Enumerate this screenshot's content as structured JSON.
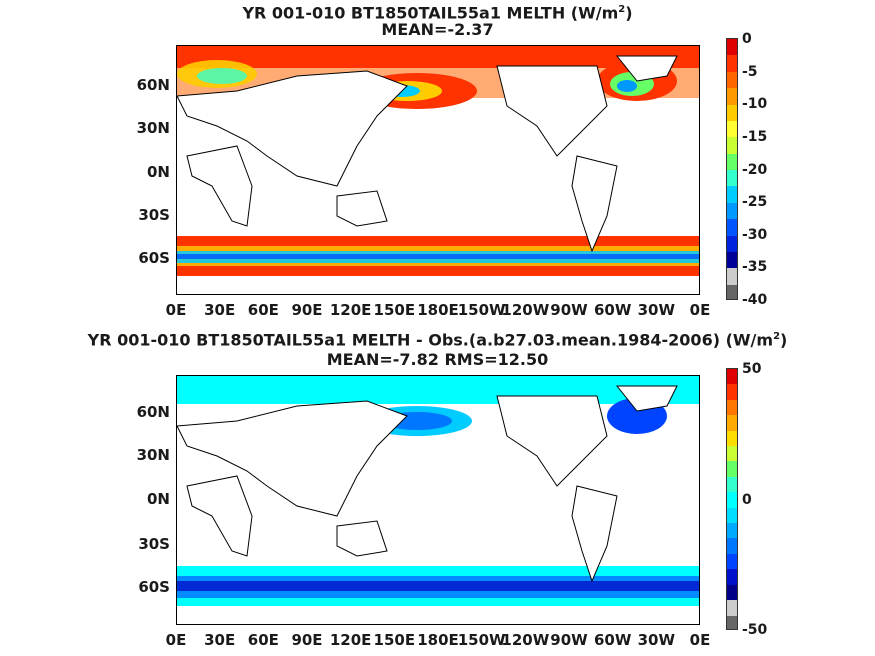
{
  "panel1": {
    "title_line1": "YR 001-010 BT1850TAIL55a1  MELTH (W/m",
    "title_sup": "2",
    "title_close": ")",
    "title_line2": "MEAN=-2.37",
    "colorbar_ticks": [
      "0",
      "-5",
      "-10",
      "-15",
      "-20",
      "-25",
      "-30",
      "-35",
      "-40"
    ]
  },
  "panel2": {
    "title_line1": "YR 001-010 BT1850TAIL55a1 MELTH - Obs.(a.b27.03.mean.1984-2006) (W/m",
    "title_sup": "2",
    "title_close": ")",
    "title_line2": "MEAN=-7.82 RMS=12.50",
    "colorbar_ticks": [
      "50",
      "0",
      "-50"
    ]
  },
  "axes": {
    "lat_labels": [
      "60N",
      "30N",
      "0N",
      "30S",
      "60S"
    ],
    "lon_labels": [
      "0E",
      "30E",
      "60E",
      "90E",
      "120E",
      "150E",
      "180E",
      "150W",
      "120W",
      "90W",
      "60W",
      "30W",
      "0E"
    ]
  },
  "colors": {
    "scale1": [
      "#e00000",
      "#ff3300",
      "#ff6600",
      "#ff9900",
      "#ffcc00",
      "#ffff33",
      "#c8ff33",
      "#66ff66",
      "#33ffcc",
      "#00ccff",
      "#0099ff",
      "#0055ff",
      "#0022dd",
      "#000099",
      "#cccccc",
      "#666666"
    ],
    "scale2": [
      "#e00000",
      "#ff3300",
      "#ff7700",
      "#ffaa00",
      "#ffdd00",
      "#ccff33",
      "#66ff66",
      "#33ffcc",
      "#00ffff",
      "#00ddff",
      "#00aaff",
      "#0077ff",
      "#0044ff",
      "#0011cc",
      "#000088",
      "#cccccc",
      "#666666"
    ]
  }
}
